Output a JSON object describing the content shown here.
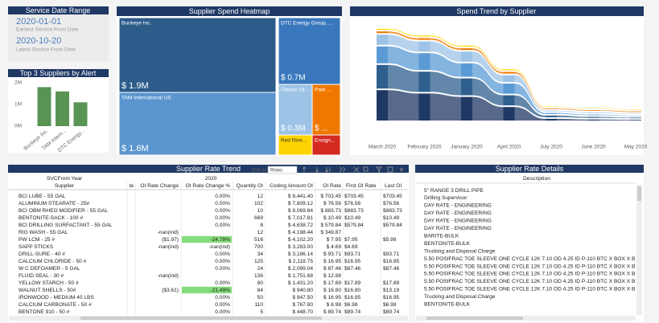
{
  "date_card": {
    "title": "Service Date Range",
    "earliest": "2020-01-01",
    "earliest_label": "Earliest Service From Date",
    "latest": "2020-10-20",
    "latest_label": "Latest Service From Date"
  },
  "top_suppliers": {
    "type": "bar",
    "title": "Top 3 Suppliers by Alert",
    "categories": [
      "Buckeye Inc.",
      "TAM Intern...",
      "DTC Energy..."
    ],
    "values": [
      1.8,
      1.6,
      1.1
    ],
    "color": "#5a9455",
    "ylim": [
      0,
      2
    ],
    "yticks": [
      {
        "value": 0,
        "label": "0M"
      },
      {
        "value": 1,
        "label": "1M"
      },
      {
        "value": 2,
        "label": "2M"
      }
    ]
  },
  "heatmap": {
    "type": "treemap",
    "title": "Supplier Spend Heatmap",
    "tiles": [
      {
        "name": "Buckeye Inc.",
        "value": 1.9,
        "value_label": "$ 1.9M",
        "color": "#2e5c8a"
      },
      {
        "name": "DTC Energy Group, ...",
        "value": 0.7,
        "value_label": "$ 0.7M",
        "color": "#3a78bd"
      },
      {
        "name": "TAM International US",
        "value": 1.6,
        "value_label": "$ 1.6M",
        "color": "#5b95cf"
      },
      {
        "name": "Classic Oi...",
        "value": 0.3,
        "value_label": "$ 0.3M",
        "color": "#9dc3e6"
      },
      {
        "name": "Pate ...",
        "value_label": "$ ...",
        "color": "#f07800"
      },
      {
        "name": "Red Rive...",
        "color": "#ffd400"
      },
      {
        "name": "Ensign...",
        "color": "#d42a20"
      }
    ]
  },
  "spend_trend": {
    "type": "ribbon",
    "title": "Spend Trend by Supplier",
    "categories": [
      "March 2020",
      "February 2020",
      "January 2020",
      "April 2020",
      "July 2020",
      "June 2020",
      "May 2020"
    ],
    "series": [
      {
        "color": "#1f3864",
        "values": [
          0.9,
          0.8,
          0.7,
          0.4,
          0.05,
          0.03,
          0.02
        ]
      },
      {
        "color": "#2e5f8e",
        "values": [
          0.7,
          0.6,
          0.5,
          0.3,
          0.05,
          0.03,
          0.02
        ]
      },
      {
        "color": "#5b9bd5",
        "values": [
          0.5,
          0.5,
          0.4,
          0.3,
          0.03,
          0.02,
          0.01
        ]
      },
      {
        "color": "#9dc3e6",
        "values": [
          0.3,
          0.3,
          0.3,
          0.2,
          0.02,
          0.02,
          0.01
        ]
      },
      {
        "color": "#f07800",
        "values": [
          0.05,
          0.05,
          0.05,
          0.05,
          0.02,
          0.02,
          0.02
        ]
      },
      {
        "color": "#ffd400",
        "values": [
          0.03,
          0.03,
          0.03,
          0.03,
          0.01,
          0.01,
          0.01
        ]
      }
    ]
  },
  "rate_trend": {
    "title": "Supplier Rate Trend",
    "toolbar": {
      "drill": "Drill on",
      "level": "Rows"
    },
    "header": [
      "SVCFrom Year",
      "2020"
    ],
    "columns": [
      "Supplier",
      "te",
      "OI Rate Change",
      "OI Rate Change %",
      "Quantity OI",
      "Coding Amount OI",
      "OI Rate",
      "First OI Rate",
      "Last OI"
    ],
    "highlight": {
      "color": "#86dc7c",
      "cells": [
        [
          6,
          3
        ],
        [
          13,
          3
        ]
      ]
    },
    "rows": [
      [
        "BCI LUBE - 55 GAL",
        null,
        null,
        "0.00%",
        12,
        "$ 8,441.40",
        "$ 703.45",
        "$703.45",
        "$703.45"
      ],
      [
        "ALUMINUM STEARATE - 25#",
        null,
        null,
        "0.00%",
        102,
        "$ 7,809.12",
        "$ 76.56",
        "$76.56",
        "$76.56"
      ],
      [
        "BCI OBM RHEO MODIFIER - 55 GAL",
        null,
        null,
        "0.00%",
        10,
        "$ 8,069.84",
        "$ 883.73",
        "$883.73",
        "$883.73"
      ],
      [
        "BENTONITE-SACK - 100 #",
        null,
        null,
        "0.00%",
        669,
        "$ 7,017.81",
        "$ 10.49",
        "$10.49",
        "$10.49"
      ],
      [
        "BCI DRILLING SURFACTANT - 55 GAL",
        null,
        null,
        "0.00%",
        8,
        "$ 4,638.72",
        "$ 579.84",
        "$579.84",
        "$579.84"
      ],
      [
        "RIG WASH - 55 GAL",
        null,
        "-nan(ind)",
        null,
        12,
        "$ 4,198.44",
        "$ 349.87",
        null,
        null
      ],
      [
        "PW LCM - 25 #",
        null,
        "($1.97)",
        "-24.78%",
        516,
        "$ 4,102.20",
        "$ 7.95",
        "$7.95",
        "$5.98"
      ],
      [
        "SAPP STICKS",
        null,
        "-nan(ind)",
        "-nan(ind)",
        700,
        "$ 3,283.00",
        "$ 4.69",
        "$4.69",
        null
      ],
      [
        "DRILL-SURE - 40 #",
        null,
        null,
        "0.00%",
        34,
        "$ 3,186.14",
        "$ 93.71",
        "$93.71",
        "$93.71"
      ],
      [
        "CALCIUM CHLORIDE - 50 #",
        null,
        null,
        "0.00%",
        125,
        "$ 2,118.75",
        "$ 16.95",
        "$16.95",
        "$16.95"
      ],
      [
        "W C DEFOAMER - 5 GAL",
        null,
        null,
        "0.00%",
        24,
        "$ 2,099.04",
        "$ 87.46",
        "$87.46",
        "$87.46"
      ],
      [
        "FLUID SEAL - 30 #",
        null,
        "-nan(ind)",
        null,
        136,
        "$ 1,751.68",
        "$ 12.88",
        null,
        null
      ],
      [
        "YELLOW STARCH - 50 #",
        null,
        null,
        "0.00%",
        80,
        "$ 1,431.20",
        "$ 17.89",
        "$17.89",
        "$17.89"
      ],
      [
        "WALNUT SHELLS - 50#",
        null,
        "($3.61)",
        "-21.49%",
        84,
        "$ 940.80",
        "$ 16.80",
        "$16.80",
        "$13.19"
      ],
      [
        "IRONWOOD - MEDIUM 40 LBS",
        null,
        null,
        "0.00%",
        50,
        "$ 847.50",
        "$ 16.95",
        "$16.95",
        "$16.95"
      ],
      [
        "CALCIUM CARBONATE - 50 #",
        null,
        null,
        "0.00%",
        110,
        "$ 767.80",
        "$ 6.98",
        "$6.98",
        "$6.98"
      ],
      [
        "BENTONE 910 - 50 #",
        null,
        null,
        "0.00%",
        5,
        "$ 448.70",
        "$ 89.74",
        "$89.74",
        "$89.74"
      ]
    ]
  },
  "rate_details": {
    "title": "Supplier Rate Details",
    "column": "Description",
    "rows": [
      "5\" RANGE 3 DRILL PIPE",
      "Drilling Supervisor",
      "DAY RATE - ENGINEERING",
      "DAY RATE - ENGINEERING",
      "DAY RATE - ENGINEERING",
      "DAY RATE - ENGINEERING",
      "BARITE-BULK",
      "BENTONITE-BULK",
      "Trucking and Disposal Charge",
      "5.50 POSIFRAC TOE SLEEVE ONE CYCLE 12K 7.10 OD 4.25 ID P-110 BTC X BOX X B",
      "5.50 POSIFRAC TOE SLEEVE ONE CYCLE 12K 7.10 OD 4.25 ID P-110 BTC X BOX X B",
      "5.50 POSIFRAC TOE SLEEVE ONE CYCLE 12K 7.10 OD 4.25 ID P-110 BTC X BOX X B",
      "5.50 POSIFRAC TOE SLEEVE ONE CYCLE 12K 7.10 OD 4.25 ID P-110 BTC X BOX X B",
      "5.50 POSIFRAC TOE SLEEVE ONE CYCLE 12K 7.10 OD 4.25 ID P-110 BTC X BOX X B",
      "Trucking and Disposal Charge",
      "BENTONITE-BULK"
    ]
  }
}
